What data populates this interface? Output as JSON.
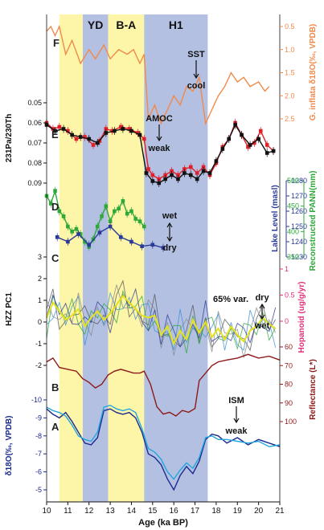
{
  "chart_data": {
    "type": "line",
    "xlabel": "Age (ka BP)",
    "x_ticks": [
      10,
      11,
      12,
      13,
      14,
      15,
      16,
      17,
      18,
      19,
      20,
      21
    ],
    "xlim": [
      10,
      21
    ],
    "event_bands": [
      {
        "name": "YD",
        "start": 11.7,
        "end": 12.9,
        "color": "#b3c0e2"
      },
      {
        "name": "B-A",
        "start": 12.9,
        "end": 14.6,
        "color": "#fdf5a8"
      },
      {
        "name": "H1",
        "start": 14.6,
        "end": 17.6,
        "color": "#b3c0e2"
      },
      {
        "name": "",
        "start": 10.6,
        "end": 11.7,
        "color": "#fdf5a8"
      }
    ],
    "panels": [
      {
        "letter": "F",
        "ylabel": "G. inflata δ18O(‰, VPDB)",
        "axis_side": "right",
        "y_ticks": [
          0.5,
          1.0,
          1.5,
          2.0,
          2.5
        ],
        "y_tick_labels": [
          "0.5",
          "1.0",
          "1.5",
          "2.0",
          "2.5"
        ],
        "inverted": true,
        "color": "#f08a4b",
        "annotation": {
          "top": "SST",
          "bottom": "cool"
        },
        "series": [
          {
            "name": "",
            "x": [
              10.0,
              10.2,
              10.4,
              10.6,
              10.9,
              11.2,
              11.6,
              12.0,
              12.3,
              12.7,
              13.0,
              13.4,
              13.8,
              14.1,
              14.4,
              14.6,
              14.8,
              15.1,
              15.4,
              15.7,
              16.0,
              16.3,
              16.6,
              16.9,
              17.2,
              17.5,
              17.8,
              18.1,
              18.4,
              18.7,
              19.0,
              19.3,
              19.6,
              20.0,
              20.3,
              20.5
            ],
            "y": [
              0.6,
              0.5,
              0.7,
              0.5,
              1.1,
              0.8,
              1.3,
              1.0,
              1.2,
              0.9,
              1.2,
              1.0,
              1.1,
              1.0,
              1.3,
              1.1,
              2.5,
              2.2,
              2.6,
              2.3,
              2.0,
              2.2,
              1.8,
              1.9,
              1.6,
              2.6,
              2.3,
              2.0,
              1.8,
              1.5,
              1.7,
              1.6,
              1.8,
              1.7,
              1.9,
              1.8
            ]
          }
        ]
      },
      {
        "letter": "E",
        "ylabel": "231Pa/230Th",
        "axis_side": "left",
        "y_ticks": [
          0.05,
          0.06,
          0.07,
          0.08,
          0.09
        ],
        "y_tick_labels": [
          "0.05",
          "0.06",
          "0.07",
          "0.08",
          "0.09"
        ],
        "inverted": true,
        "annotation": {
          "top": "AMOC",
          "bottom": "weak"
        },
        "series": [
          {
            "name": "",
            "color": "#e0202a",
            "x": [
              10.0,
              10.3,
              10.6,
              11.0,
              11.4,
              11.8,
              12.2,
              12.5,
              12.8,
              13.1,
              13.5,
              13.9,
              14.3,
              14.6,
              14.8,
              15.0,
              15.3,
              15.6,
              15.9,
              16.2,
              16.5,
              16.8,
              17.1,
              17.4,
              17.7,
              18.0,
              18.3,
              18.6,
              18.9,
              19.2,
              19.5,
              19.8,
              20.1,
              20.4,
              20.7
            ],
            "y": [
              0.06,
              0.063,
              0.062,
              0.064,
              0.068,
              0.067,
              0.071,
              0.069,
              0.063,
              0.064,
              0.062,
              0.063,
              0.065,
              0.068,
              0.083,
              0.086,
              0.088,
              0.086,
              0.084,
              0.086,
              0.083,
              0.082,
              0.085,
              0.082,
              0.086,
              0.08,
              0.072,
              0.068,
              0.06,
              0.066,
              0.072,
              0.07,
              0.064,
              0.071,
              0.074
            ]
          },
          {
            "name": "",
            "color": "#111111",
            "x": [
              10.0,
              10.4,
              10.8,
              11.2,
              11.6,
              12.0,
              12.4,
              12.8,
              13.2,
              13.6,
              14.0,
              14.4,
              14.7,
              15.0,
              15.3,
              15.6,
              15.9,
              16.2,
              16.5,
              16.8,
              17.1,
              17.4,
              17.7,
              18.0,
              18.3,
              18.6,
              18.9,
              19.2,
              19.6,
              20.0,
              20.4,
              20.7
            ],
            "y": [
              0.061,
              0.064,
              0.063,
              0.066,
              0.067,
              0.068,
              0.07,
              0.065,
              0.064,
              0.063,
              0.064,
              0.066,
              0.085,
              0.089,
              0.09,
              0.088,
              0.086,
              0.088,
              0.085,
              0.086,
              0.088,
              0.084,
              0.085,
              0.079,
              0.073,
              0.068,
              0.061,
              0.066,
              0.071,
              0.068,
              0.075,
              0.074
            ]
          }
        ]
      },
      {
        "letter": "D",
        "ylabel": "Lake Level (masl)",
        "ylabel2": "Reconstructed PANN(mm)",
        "axis_side": "right",
        "y_ticks": [
          1230,
          1240,
          1250,
          1260,
          1270,
          1280
        ],
        "y_tick_labels": [
          "1230",
          "1240",
          "1250",
          "1260",
          "1270",
          "1280"
        ],
        "y2_ticks": [
          350,
          400,
          450,
          500
        ],
        "y2_tick_labels": [
          "350",
          "400",
          "450",
          "500"
        ],
        "annotation": {
          "top": "wet",
          "bottom": "dry"
        },
        "series": [
          {
            "name": "",
            "color": "#2fa83a",
            "x": [
              10.0,
              10.2,
              10.4,
              10.6,
              10.8,
              11.0,
              11.2,
              11.4,
              11.6,
              11.8,
              12.0,
              12.2,
              12.4,
              12.6,
              12.8,
              13.0,
              13.2,
              13.4,
              13.6,
              13.8,
              14.0,
              14.2,
              14.4,
              14.6
            ],
            "y": [
              470,
              455,
              480,
              440,
              430,
              410,
              400,
              405,
              395,
              380,
              370,
              385,
              410,
              430,
              450,
              420,
              440,
              445,
              460,
              435,
              440,
              425,
              420,
              410
            ]
          },
          {
            "name": "",
            "color": "#2a3a99",
            "x": [
              10.5,
              11.0,
              11.5,
              12.0,
              12.5,
              13.0,
              13.5,
              14.0,
              14.5,
              15.0,
              15.5
            ],
            "y": [
              1243,
              1240,
              1245,
              1238,
              1246,
              1250,
              1243,
              1240,
              1237,
              1238,
              1236
            ]
          }
        ]
      },
      {
        "letter": "C",
        "ylabel": "HZZ PC1",
        "ylabel2": "Hopanoid (ug/g/yr)",
        "axis_side": "left",
        "y_ticks": [
          -2,
          -1,
          0,
          1,
          2,
          3
        ],
        "y_tick_labels": [
          "-2",
          "-1",
          "0",
          "1",
          "2",
          "3"
        ],
        "y2_ticks": [
          0,
          0.5,
          1
        ],
        "y2_tick_labels": [
          "0",
          "0.5",
          "1"
        ],
        "annotation": {
          "label": "65% var.",
          "top": "dry",
          "bottom": "wet"
        },
        "series": [
          {
            "name": "",
            "color": "#e6e21c",
            "x": [
              10.0,
              10.3,
              10.6,
              10.9,
              11.2,
              11.5,
              11.8,
              12.1,
              12.4,
              12.7,
              13.0,
              13.3,
              13.6,
              13.9,
              14.2,
              14.5,
              14.8,
              15.1,
              15.4,
              15.7,
              16.0,
              16.3,
              16.6,
              16.9,
              17.2,
              17.5,
              17.8,
              18.1,
              18.4,
              18.7,
              19.0,
              19.3,
              19.6,
              19.9,
              20.2,
              20.5,
              20.8
            ],
            "y": [
              0.2,
              0.9,
              0.5,
              0.1,
              0.3,
              0.6,
              -0.2,
              0.2,
              0.5,
              0.1,
              0.4,
              0.8,
              1.2,
              0.9,
              0.6,
              0.3,
              0.2,
              0.3,
              -0.6,
              -0.2,
              -1.0,
              -0.4,
              -0.8,
              0.1,
              -0.5,
              0.0,
              -0.7,
              -0.3,
              -0.8,
              -0.2,
              -0.6,
              -0.9,
              -0.4,
              -0.2,
              0.2,
              -0.1,
              -0.3
            ]
          }
        ]
      },
      {
        "letter": "B",
        "ylabel": "Reflectance (L*)",
        "axis_side": "right",
        "y_ticks": [
          60,
          70,
          80,
          90,
          100
        ],
        "y_tick_labels": [
          "60",
          "70",
          "80",
          "90",
          "100"
        ],
        "inverted": true,
        "color": "#8c1a1a",
        "annotation": {
          "top": "ISM",
          "bottom": "weak"
        },
        "series": [
          {
            "name": "",
            "x": [
              10.0,
              10.3,
              10.6,
              11.0,
              11.4,
              11.7,
              12.0,
              12.3,
              12.6,
              12.9,
              13.2,
              13.5,
              13.8,
              14.1,
              14.4,
              14.6,
              14.9,
              15.2,
              15.5,
              15.8,
              16.1,
              16.4,
              16.7,
              17.0,
              17.2,
              17.5,
              17.8,
              18.1,
              18.5,
              19.0,
              19.5,
              20.0,
              20.5,
              21.0
            ],
            "y": [
              68,
              66,
              71,
              72,
              73,
              77,
              79,
              82,
              80,
              75,
              73,
              72,
              73,
              74,
              74,
              73,
              80,
              92,
              96,
              95,
              97,
              94,
              95,
              93,
              78,
              74,
              70,
              68,
              67,
              66,
              64,
              66,
              65,
              67
            ]
          }
        ]
      },
      {
        "letter": "A",
        "ylabel": "δ18O(‰, VPDB)",
        "axis_side": "left",
        "y_ticks": [
          -10,
          -9,
          -8,
          -7,
          -6,
          -5
        ],
        "y_tick_labels": [
          "-10",
          "-9",
          "-8",
          "-7",
          "-6",
          "-5"
        ],
        "inverted": true,
        "series": [
          {
            "name": "",
            "color": "#1a2a8c",
            "x": [
              10.0,
              10.3,
              10.6,
              10.9,
              11.2,
              11.5,
              11.8,
              12.1,
              12.4,
              12.7,
              13.0,
              13.3,
              13.6,
              13.9,
              14.2,
              14.5,
              14.8,
              15.1,
              15.4,
              15.7,
              16.0,
              16.3,
              16.6,
              16.9,
              17.2,
              17.5,
              17.8,
              18.1,
              18.5,
              19.0,
              19.5,
              20.0,
              20.5,
              21.0
            ],
            "y": [
              -9.5,
              -9.2,
              -9.0,
              -9.3,
              -8.8,
              -8.2,
              -7.6,
              -7.5,
              -7.9,
              -9.4,
              -9.5,
              -9.3,
              -9.2,
              -9.3,
              -9.0,
              -8.2,
              -7.0,
              -6.8,
              -6.4,
              -5.6,
              -5.0,
              -5.8,
              -6.3,
              -5.9,
              -6.6,
              -7.8,
              -8.1,
              -8.0,
              -7.6,
              -7.9,
              -7.5,
              -7.8,
              -7.6,
              -7.4
            ]
          },
          {
            "name": "",
            "color": "#22a6dd",
            "x": [
              10.0,
              10.3,
              10.6,
              10.9,
              11.2,
              11.5,
              11.8,
              12.1,
              12.4,
              12.7,
              13.0,
              13.3,
              13.6,
              13.9,
              14.2,
              14.5,
              14.8,
              15.1,
              15.4,
              15.7,
              16.0,
              16.3,
              16.6,
              16.9,
              17.2,
              17.5,
              17.8,
              18.1,
              18.5,
              19.0,
              19.5,
              20.0,
              20.5,
              21.0
            ],
            "y": [
              -9.6,
              -9.4,
              -9.3,
              -9.1,
              -8.6,
              -8.0,
              -7.8,
              -7.7,
              -8.2,
              -9.6,
              -9.7,
              -9.5,
              -9.4,
              -9.5,
              -9.3,
              -8.4,
              -7.3,
              -7.1,
              -6.7,
              -6.0,
              -5.6,
              -6.1,
              -6.5,
              -6.2,
              -6.8,
              -7.9,
              -8.0,
              -7.8,
              -7.8,
              -7.7,
              -7.6,
              -7.7,
              -7.4,
              -7.5
            ]
          }
        ]
      }
    ]
  }
}
